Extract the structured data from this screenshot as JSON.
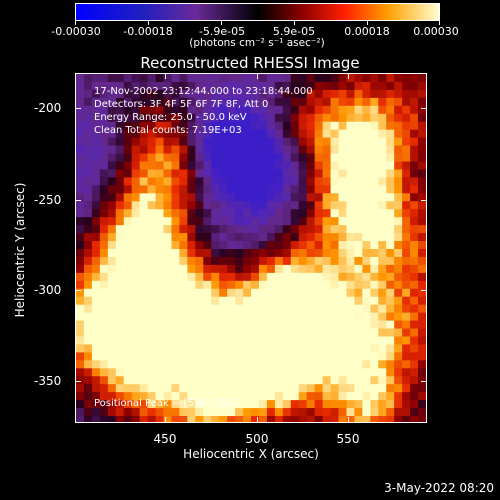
{
  "colorbar": {
    "tick_labels": [
      "-0.00030",
      "-0.00018",
      "-5.9e-05",
      "5.9e-05",
      "0.00018",
      "0.00030"
    ],
    "units": "(photons cm⁻² s⁻¹ asec⁻²)"
  },
  "plot": {
    "title": "Reconstructed RHESSI Image",
    "info_lines": [
      "17-Nov-2002 23:12:44.000 to 23:18:44.000",
      "Detectors: 3F 4F 5F 6F 7F 8F, Att 0",
      "Energy Range: 25.0 - 50.0 keV",
      "Clean      Total counts: 7.19E+03"
    ],
    "peak_text": "Positional Peak = [558,-255]",
    "x_ticks": [
      "450",
      "500",
      "550"
    ],
    "y_ticks": [
      "-200",
      "-250",
      "-300",
      "-350"
    ],
    "xlabel": "Heliocentric X (arcsec)",
    "ylabel": "Heliocentric Y (arcsec)"
  },
  "footer": {
    "date": "3-May-2022 08:20"
  }
}
